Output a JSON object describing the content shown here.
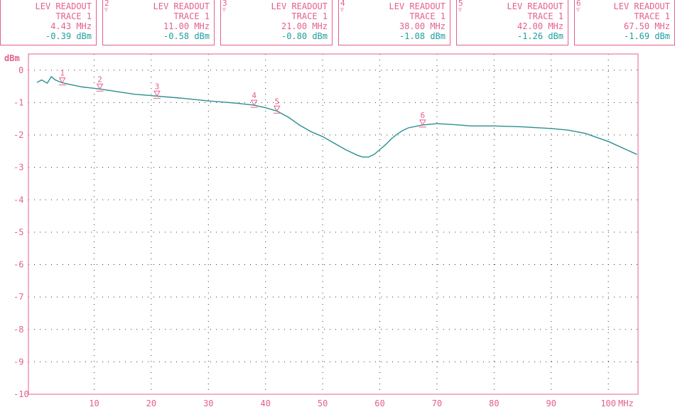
{
  "markers": [
    {
      "number": "",
      "title": "LEV READOUT",
      "trace": "TRACE 1",
      "freq": "4.43 MHz",
      "level": "-0.39 dBm"
    },
    {
      "number": "2",
      "title": "LEV READOUT",
      "trace": "TRACE 1",
      "freq": "11.00 MHz",
      "level": "-0.58 dBm"
    },
    {
      "number": "3",
      "title": "LEV READOUT",
      "trace": "TRACE 1",
      "freq": "21.00 MHz",
      "level": "-0.80 dBm"
    },
    {
      "number": "4",
      "title": "LEV READOUT",
      "trace": "TRACE 1",
      "freq": "38.00 MHz",
      "level": "-1.08 dBm"
    },
    {
      "number": "5",
      "title": "LEV READOUT",
      "trace": "TRACE 1",
      "freq": "42.00 MHz",
      "level": "-1.26 dBm"
    },
    {
      "number": "6",
      "title": "LEV READOUT",
      "trace": "TRACE 1",
      "freq": "67.50 MHz",
      "level": "-1.69 dBm"
    }
  ],
  "colors": {
    "label": "#e4608c",
    "trace": "#2a8f8f",
    "value": "#1f9e9e",
    "grid": "#333333"
  },
  "chart_data": {
    "type": "line",
    "xlabel": "MHz",
    "ylabel": "dBm",
    "xlim": [
      0,
      105
    ],
    "ylim": [
      -10,
      0.5
    ],
    "xticks": [
      10,
      20,
      30,
      40,
      50,
      60,
      70,
      80,
      90,
      100
    ],
    "yticks": [
      0,
      -1,
      -2,
      -3,
      -4,
      -5,
      -6,
      -7,
      -8,
      -9,
      -10
    ],
    "grid": true,
    "series": [
      {
        "x": [
          0,
          0.8,
          1.8,
          2.5,
          3.2,
          4.43,
          6,
          8,
          11,
          14,
          17,
          21,
          25,
          30,
          35,
          38,
          40,
          42,
          44,
          46,
          48,
          50,
          52,
          54,
          56,
          57,
          58,
          59,
          60,
          61,
          62,
          63,
          64,
          65,
          67.5,
          70,
          73,
          76,
          80,
          85,
          90,
          93,
          96,
          100,
          105
        ],
        "y": [
          -0.38,
          -0.3,
          -0.4,
          -0.2,
          -0.3,
          -0.39,
          -0.45,
          -0.52,
          -0.58,
          -0.66,
          -0.74,
          -0.8,
          -0.86,
          -0.95,
          -1.02,
          -1.08,
          -1.16,
          -1.26,
          -1.45,
          -1.7,
          -1.9,
          -2.05,
          -2.25,
          -2.45,
          -2.62,
          -2.68,
          -2.68,
          -2.6,
          -2.45,
          -2.3,
          -2.12,
          -1.98,
          -1.86,
          -1.78,
          -1.69,
          -1.65,
          -1.68,
          -1.72,
          -1.72,
          -1.75,
          -1.8,
          -1.85,
          -1.95,
          -2.2,
          -2.6
        ]
      }
    ],
    "markers": [
      {
        "label": "1",
        "x": 4.43,
        "y": -0.39
      },
      {
        "label": "2",
        "x": 11.0,
        "y": -0.58
      },
      {
        "label": "3",
        "x": 21.0,
        "y": -0.8
      },
      {
        "label": "4",
        "x": 38.0,
        "y": -1.08
      },
      {
        "label": "5",
        "x": 42.0,
        "y": -1.26
      },
      {
        "label": "6",
        "x": 67.5,
        "y": -1.69
      }
    ]
  }
}
